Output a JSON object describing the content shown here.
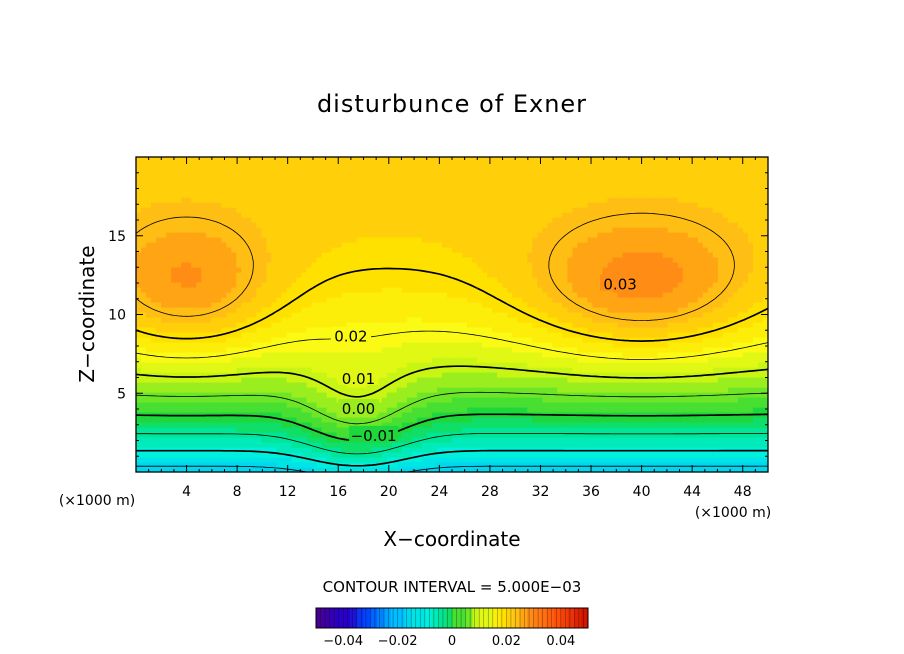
{
  "chart_data": {
    "type": "contour",
    "title": "disturbunce of Exner",
    "xlabel": "X−coordinate",
    "ylabel": "Z−coordinate",
    "x_unit": "(×1000 m)",
    "y_unit": "(×1000 m)",
    "xlim": [
      0,
      50
    ],
    "ylim": [
      0,
      20
    ],
    "x_ticks": [
      4,
      8,
      12,
      16,
      20,
      24,
      28,
      32,
      36,
      40,
      44,
      48
    ],
    "y_ticks": [
      5,
      10,
      15
    ],
    "x_tick_labels": [
      "4",
      "8",
      "12",
      "16",
      "20",
      "24",
      "28",
      "32",
      "36",
      "40",
      "44",
      "48"
    ],
    "y_tick_labels": [
      "5",
      "10",
      "15"
    ],
    "contour_interval_label": "CONTOUR INTERVAL = 5.000E−03",
    "contour_interval": 0.005,
    "contour_labels": [
      {
        "text": "0.03",
        "x": 38.3,
        "z": 11.9
      },
      {
        "text": "0.02",
        "x": 17.0,
        "z": 8.6
      },
      {
        "text": "0.01",
        "x": 17.6,
        "z": 5.9
      },
      {
        "text": "0.00",
        "x": 17.6,
        "z": 4.0
      },
      {
        "text": "−0.01",
        "x": 18.8,
        "z": 2.3
      }
    ],
    "colorbar": {
      "range": [
        -0.05,
        0.05
      ],
      "tick_values": [
        -0.04,
        -0.02,
        0,
        0.02,
        0.04
      ],
      "tick_labels": [
        "−0.04",
        "−0.02",
        "0",
        "0.02",
        "0.04"
      ]
    }
  }
}
